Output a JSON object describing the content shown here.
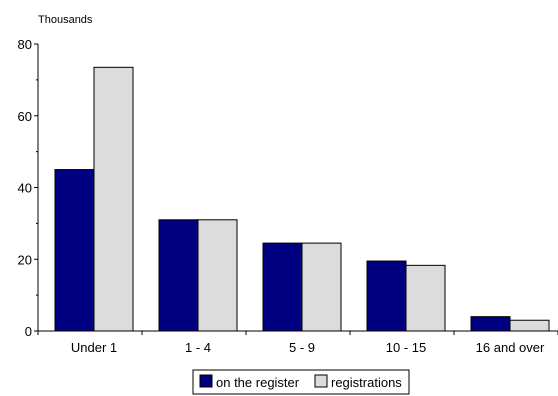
{
  "chart_data": {
    "type": "bar",
    "title": "",
    "xlabel": "",
    "ylabel": "Thousands",
    "categories": [
      "Under 1",
      "1 - 4",
      "5 - 9",
      "10 - 15",
      "16 and over"
    ],
    "series": [
      {
        "name": "on the register",
        "values": [
          45,
          31,
          24.5,
          19.5,
          4
        ],
        "color": "#000080"
      },
      {
        "name": "registrations",
        "values": [
          73.5,
          31,
          24.5,
          18.3,
          3
        ],
        "color": "#dcdcdc"
      }
    ],
    "ylim": [
      0,
      80
    ],
    "yticks": [
      0,
      20,
      40,
      60,
      80
    ],
    "grid": false,
    "legend_position": "bottom-center"
  }
}
